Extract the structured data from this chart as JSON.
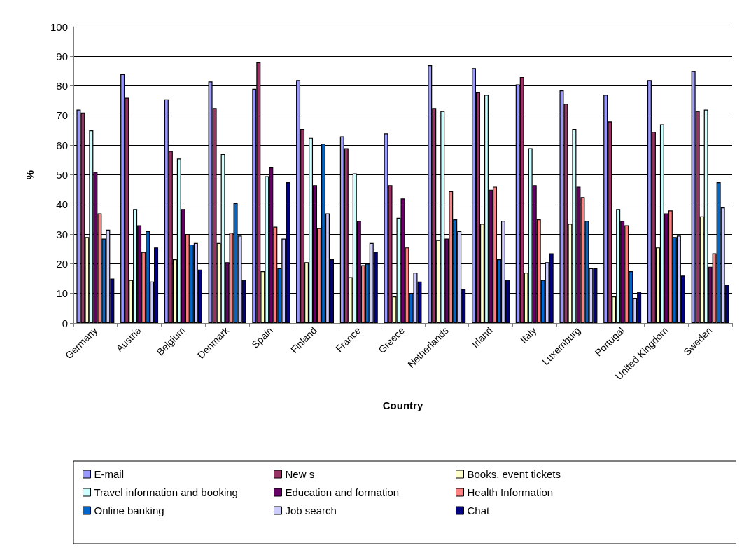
{
  "chart_data": {
    "type": "bar",
    "xlabel": "Country",
    "ylabel": "%",
    "categories": [
      "Germany",
      "Austria",
      "Belgium",
      "Denmark",
      "Spain",
      "Finland",
      "France",
      "Greece",
      "Netherlands",
      "Irland",
      "Italy",
      "Luxemburg",
      "Portugal",
      "United Kingdom",
      "Sweden"
    ],
    "series": [
      {
        "name": "E-mail",
        "color": "#9999ff",
        "values": [
          72,
          84,
          75.5,
          81.5,
          79,
          82,
          63,
          64,
          87,
          86,
          80.5,
          78.5,
          77,
          82,
          85
        ]
      },
      {
        "name": "New s",
        "color": "#993366",
        "values": [
          71,
          76,
          58,
          72.5,
          88,
          65.5,
          59,
          46.5,
          72.5,
          78,
          83,
          74,
          68,
          64.5,
          71.5
        ]
      },
      {
        "name": "Books, event tickets",
        "color": "#ffffcc",
        "values": [
          29,
          14.5,
          21.5,
          27,
          17.5,
          20.5,
          15.5,
          9,
          28,
          33.5,
          17,
          33.5,
          9,
          25.5,
          36
        ]
      },
      {
        "name": "Travel information and booking",
        "color": "#ccffff",
        "values": [
          65,
          38.5,
          55.5,
          57,
          49.5,
          62.5,
          50.5,
          35.5,
          71.5,
          77,
          59,
          65.5,
          38.5,
          67,
          72
        ]
      },
      {
        "name": "Education and formation",
        "color": "#660066",
        "values": [
          51,
          33,
          38.5,
          20.5,
          52.5,
          46.5,
          34.5,
          42,
          28.5,
          45,
          46.5,
          46,
          34.5,
          37,
          19
        ]
      },
      {
        "name": "Health Information",
        "color": "#ff8080",
        "values": [
          37,
          24,
          30,
          30.5,
          32.5,
          32,
          19.5,
          25.5,
          44.5,
          46,
          35,
          42.5,
          33,
          38,
          23.5
        ]
      },
      {
        "name": "Online banking",
        "color": "#0066cc",
        "values": [
          28.5,
          31,
          26.5,
          40.5,
          18.5,
          60.5,
          20,
          10,
          35,
          21.5,
          14.5,
          34.5,
          17.5,
          29,
          47.5
        ]
      },
      {
        "name": "Job search",
        "color": "#ccccff",
        "values": [
          31.5,
          14,
          27,
          29.5,
          28.5,
          37,
          27,
          17,
          31,
          34.5,
          20.5,
          18.5,
          8.5,
          29.5,
          39
        ]
      },
      {
        "name": "Chat",
        "color": "#000080",
        "values": [
          15,
          25.5,
          18,
          14.5,
          47.5,
          21.5,
          24,
          14,
          11.5,
          14.5,
          23.5,
          18.5,
          10.5,
          16,
          13
        ]
      }
    ],
    "ylim": [
      0,
      100
    ],
    "yticks": [
      0,
      10,
      20,
      30,
      40,
      50,
      60,
      70,
      80,
      90,
      100
    ],
    "grid": "y",
    "legend": "bottom"
  }
}
